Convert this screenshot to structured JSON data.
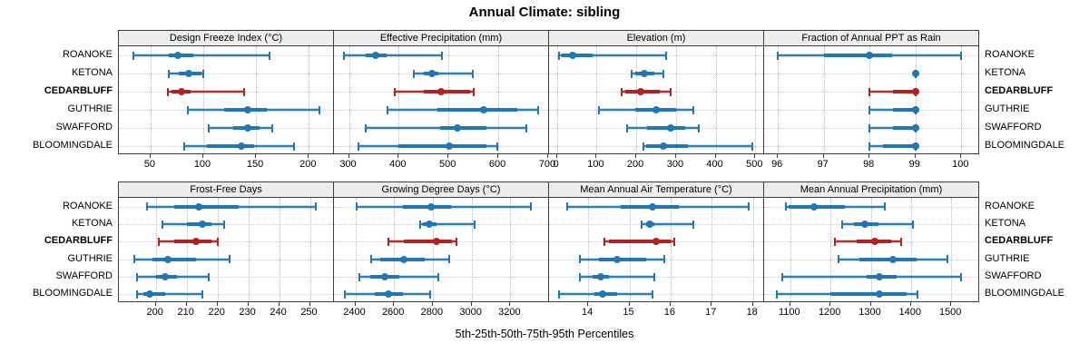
{
  "title": "Annual Climate: sibling",
  "caption": "5th-25th-50th-75th-95th Percentiles",
  "colors": {
    "series_blue": "#1f77b4",
    "series_red": "#b22222",
    "strip_bg": "#ededed",
    "panel_border": "#3c3c3c",
    "grid": "#c0c0c0"
  },
  "chart_data": {
    "type": "dotplot-percentile-trellis",
    "percentiles": [
      5,
      25,
      50,
      75,
      95
    ],
    "site_order": [
      "ROANOKE",
      "KETONA",
      "CEDARBLUFF",
      "GUTHRIE",
      "SWAFFORD",
      "BLOOMINGDALE"
    ],
    "highlight_site": "CEDARBLUFF",
    "legend": "none",
    "grid": "dotted",
    "panels": [
      {
        "title": "Design Freeze Index (°C)",
        "grid_row": 0,
        "grid_col": 0,
        "xlim": [
          20,
          223
        ],
        "ticks": [
          50,
          100,
          150,
          200
        ],
        "values": [
          [
            34,
            67,
            76,
            91,
            163
          ],
          [
            67,
            77,
            86,
            98,
            100
          ],
          [
            66,
            70,
            79,
            88,
            139
          ],
          [
            85,
            120,
            142,
            160,
            210
          ],
          [
            105,
            128,
            142,
            153,
            165
          ],
          [
            82,
            103,
            136,
            148,
            186
          ]
        ]
      },
      {
        "title": "Effective Precipitation (mm)",
        "grid_row": 0,
        "grid_col": 1,
        "xlim": [
          270,
          700
        ],
        "ticks": [
          300,
          400,
          500,
          600,
          700
        ],
        "values": [
          [
            290,
            333,
            354,
            375,
            487
          ],
          [
            430,
            450,
            466,
            480,
            548
          ],
          [
            392,
            450,
            485,
            543,
            550
          ],
          [
            378,
            477,
            570,
            638,
            680
          ],
          [
            334,
            483,
            518,
            576,
            657
          ],
          [
            319,
            400,
            502,
            576,
            597
          ]
        ]
      },
      {
        "title": "Elevation (m)",
        "grid_row": 0,
        "grid_col": 2,
        "xlim": [
          -20,
          520
        ],
        "ticks": [
          0,
          100,
          200,
          300,
          400,
          500
        ],
        "values": [
          [
            4,
            12,
            39,
            90,
            275
          ],
          [
            187,
            197,
            219,
            245,
            268
          ],
          [
            164,
            173,
            211,
            260,
            287
          ],
          [
            105,
            197,
            250,
            300,
            343
          ],
          [
            176,
            228,
            287,
            323,
            358
          ],
          [
            217,
            225,
            269,
            330,
            492
          ]
        ]
      },
      {
        "title": "Fraction of Annual PPT as Rain",
        "grid_row": 0,
        "grid_col": 3,
        "xlim": [
          95.7,
          100.35
        ],
        "ticks": [
          96,
          97,
          98,
          99,
          100
        ],
        "values": [
          [
            96,
            97,
            98,
            98.5,
            100
          ],
          [
            99,
            99,
            99,
            99,
            99
          ],
          [
            98,
            98.5,
            99,
            99,
            99
          ],
          [
            98,
            98.5,
            99,
            99,
            99
          ],
          [
            98,
            98.5,
            99,
            99,
            99
          ],
          [
            98,
            98.3,
            99,
            99,
            99
          ]
        ]
      },
      {
        "title": "Frost-Free Days",
        "grid_row": 1,
        "grid_col": 0,
        "xlim": [
          188,
          257.5
        ],
        "ticks": [
          200,
          210,
          220,
          230,
          240,
          250
        ],
        "values": [
          [
            197,
            206,
            214,
            227,
            252
          ],
          [
            202,
            210,
            215,
            218,
            222
          ],
          [
            201,
            206,
            213,
            218,
            220
          ],
          [
            193,
            199,
            204,
            213,
            224
          ],
          [
            194,
            200,
            203,
            207,
            217
          ],
          [
            194,
            196,
            198,
            203,
            215
          ]
        ]
      },
      {
        "title": "Growing Degree Days (°C)",
        "grid_row": 1,
        "grid_col": 1,
        "xlim": [
          2290,
          3395
        ],
        "ticks": [
          2400,
          2600,
          2800,
          3000,
          3200
        ],
        "values": [
          [
            2405,
            2645,
            2790,
            2895,
            3305
          ],
          [
            2733,
            2750,
            2780,
            2820,
            3015
          ],
          [
            2570,
            2650,
            2820,
            2900,
            2920
          ],
          [
            2480,
            2530,
            2650,
            2760,
            2885
          ],
          [
            2420,
            2475,
            2550,
            2625,
            2830
          ],
          [
            2345,
            2500,
            2570,
            2645,
            2785
          ]
        ]
      },
      {
        "title": "Mean Annual Air Temperature (°C)",
        "grid_row": 1,
        "grid_col": 2,
        "xlim": [
          13.05,
          18.25
        ],
        "ticks": [
          14,
          15,
          16,
          17,
          18
        ],
        "values": [
          [
            13.5,
            14.8,
            15.55,
            16.2,
            17.9
          ],
          [
            15.3,
            15.4,
            15.5,
            15.6,
            16.55
          ],
          [
            14.4,
            14.5,
            15.65,
            16.0,
            16.1
          ],
          [
            13.8,
            14.25,
            14.7,
            15.4,
            15.85
          ],
          [
            13.8,
            14.1,
            14.3,
            14.5,
            15.6
          ],
          [
            13.3,
            14.15,
            14.35,
            14.7,
            15.55
          ]
        ]
      },
      {
        "title": "Mean Annual Precipitation (mm)",
        "grid_row": 1,
        "grid_col": 3,
        "xlim": [
          1035,
          1565
        ],
        "ticks": [
          1100,
          1200,
          1300,
          1400,
          1500
        ],
        "values": [
          [
            1090,
            1095,
            1160,
            1235,
            1335
          ],
          [
            1228,
            1258,
            1285,
            1320,
            1405
          ],
          [
            1210,
            1265,
            1310,
            1350,
            1375
          ],
          [
            1220,
            1272,
            1355,
            1415,
            1490
          ],
          [
            1080,
            1290,
            1322,
            1365,
            1525
          ],
          [
            1066,
            1200,
            1322,
            1389,
            1416
          ]
        ]
      }
    ]
  }
}
